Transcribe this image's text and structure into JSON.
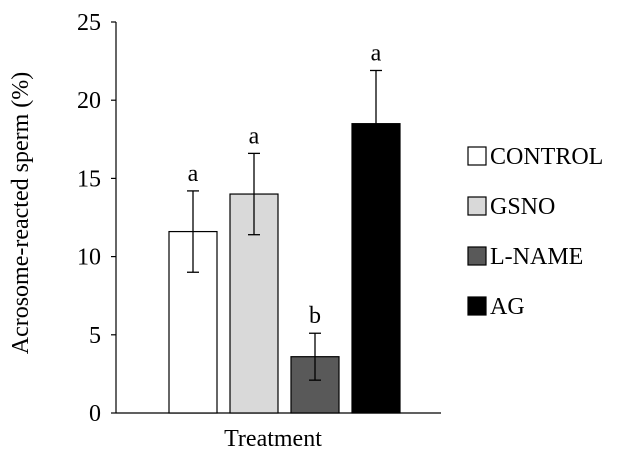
{
  "chart_data": {
    "type": "bar",
    "xlabel": "Treatment",
    "ylabel": "Acrosome-reacted sperm (%)",
    "ylim": [
      0,
      25
    ],
    "yticks": [
      "0",
      "5",
      "10",
      "15",
      "20",
      "25"
    ],
    "grid": false,
    "legend_position": "right",
    "series": [
      {
        "name": "CONTROL",
        "value": 11.6,
        "error": 2.6,
        "letter": "a",
        "color": "#ffffff"
      },
      {
        "name": "GSNO",
        "value": 14.0,
        "error": 2.6,
        "letter": "a",
        "color": "#d9d9d9"
      },
      {
        "name": "L-NAME",
        "value": 3.6,
        "error": 1.5,
        "letter": "b",
        "color": "#595959"
      },
      {
        "name": "AG",
        "value": 18.5,
        "error": 3.4,
        "letter": "a",
        "color": "#000000"
      }
    ]
  }
}
